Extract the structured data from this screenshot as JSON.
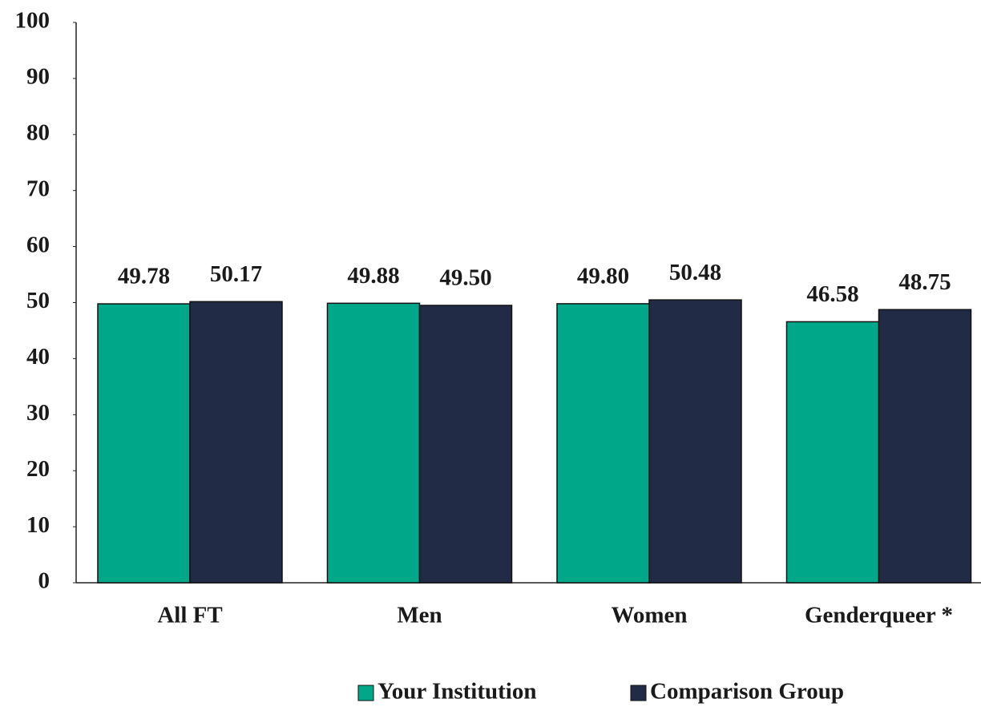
{
  "chart_data": {
    "type": "bar",
    "categories": [
      "All FT",
      "Men",
      "Women",
      "Genderqueer *"
    ],
    "series": [
      {
        "name": "Your Institution",
        "color": "#00a88a",
        "values": [
          49.78,
          49.88,
          49.8,
          46.58
        ],
        "value_labels": [
          "49.78",
          "49.88",
          "49.80",
          "46.58"
        ]
      },
      {
        "name": "Comparison Group",
        "color": "#212b45",
        "values": [
          50.17,
          49.5,
          50.48,
          48.75
        ],
        "value_labels": [
          "50.17",
          "49.50",
          "50.48",
          "48.75"
        ]
      }
    ],
    "ylim": [
      0,
      100
    ],
    "yticks": [
      0,
      10,
      20,
      30,
      40,
      50,
      60,
      70,
      80,
      90,
      100
    ],
    "grid": false,
    "legend": "bottom"
  }
}
